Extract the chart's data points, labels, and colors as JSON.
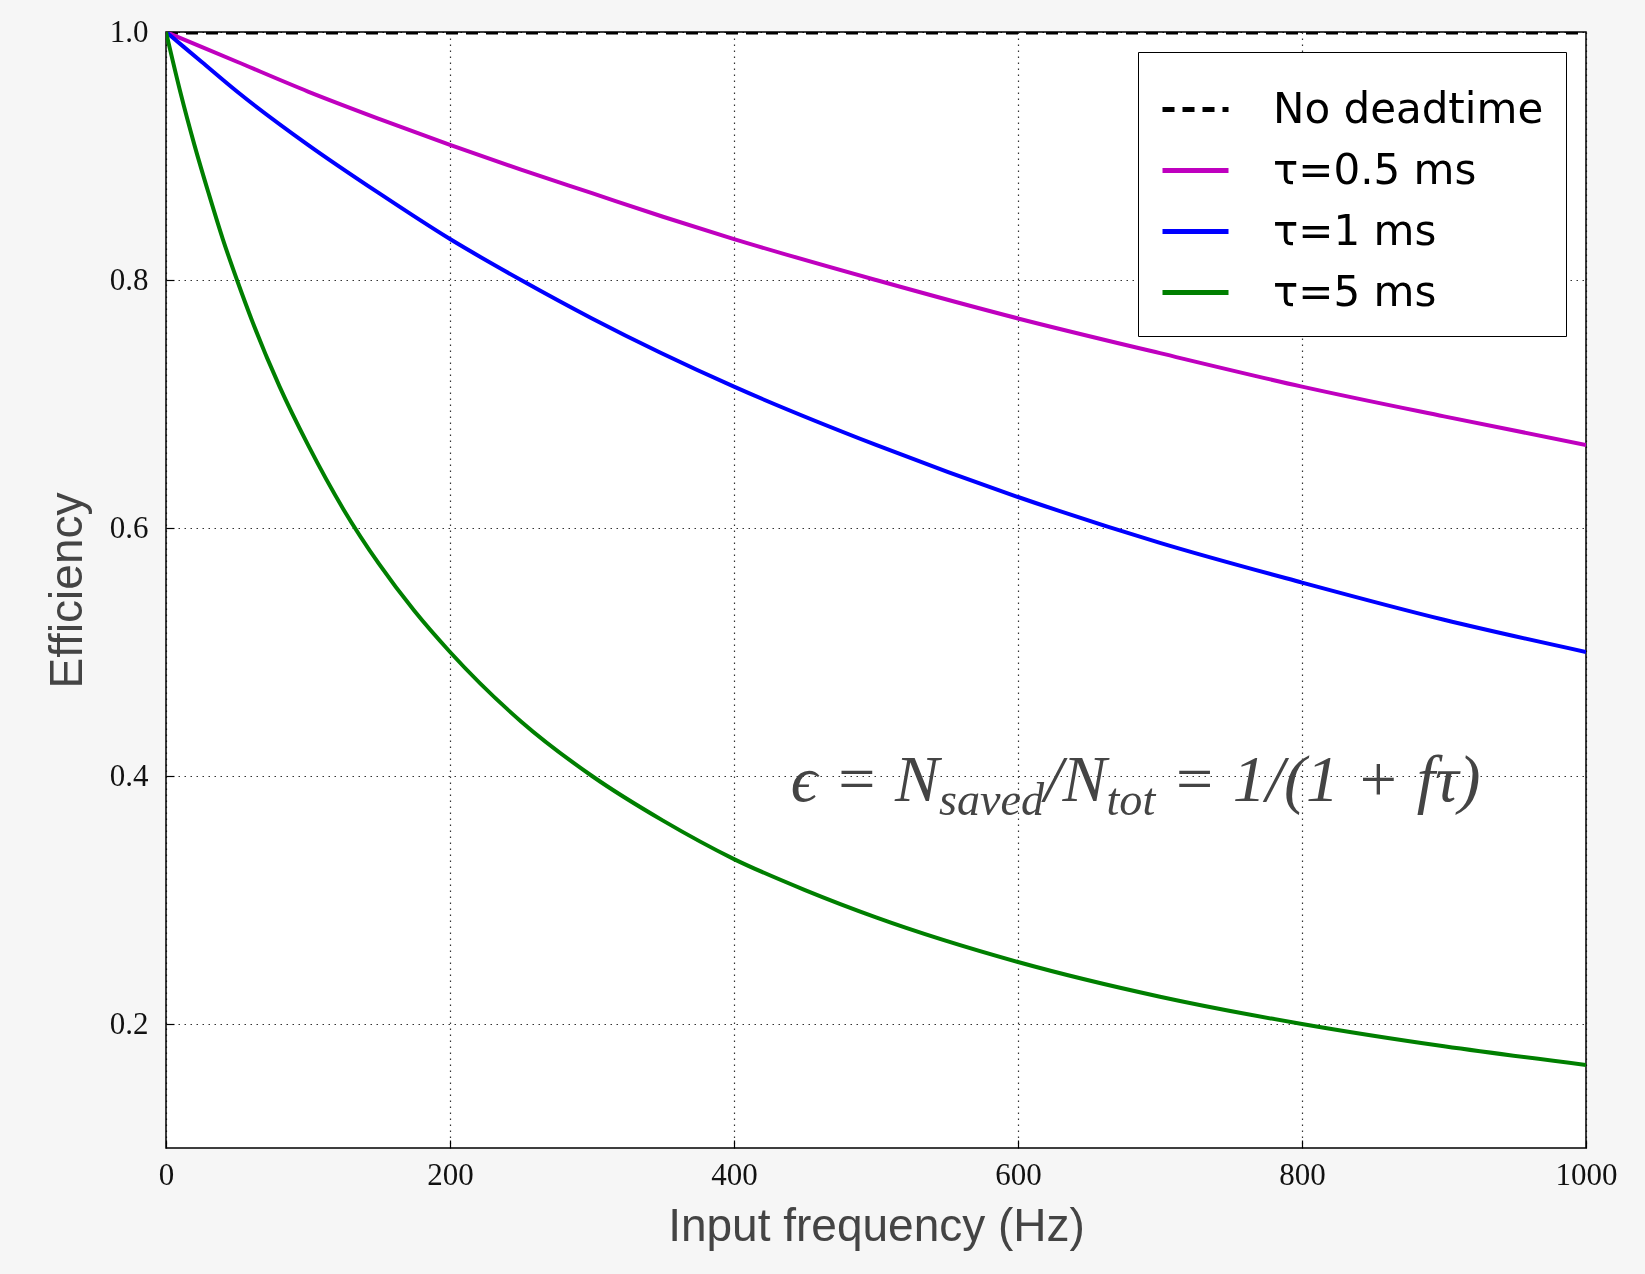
{
  "chart_data": {
    "type": "line",
    "xlabel": "Input frequency (Hz)",
    "ylabel": "Efficiency",
    "annotations": [
      "ϵ = N$_{saved}$/N$_{tot}$ = 1/(1 + fτ)"
    ],
    "xlim": [
      0,
      1000
    ],
    "ylim": [
      0.1,
      1.0
    ],
    "xticks": [
      0,
      200,
      400,
      600,
      800,
      1000
    ],
    "yticks": [
      0.2,
      0.4,
      0.6,
      0.8,
      {
        "value": 1,
        "label": "1.0"
      }
    ],
    "grid": true,
    "legend": "top right",
    "series": [
      {
        "name": "No deadtime",
        "color": "#000000",
        "line_style": "dashed",
        "x": [
          0,
          1000
        ],
        "values": [
          1,
          1
        ]
      },
      {
        "name": "τ=0.5 ms",
        "color": "#bf00bf",
        "x": [
          0,
          50,
          100,
          150,
          200,
          250,
          300,
          350,
          400,
          500,
          600,
          700,
          800,
          900,
          1000
        ],
        "values": [
          1,
          0.976,
          0.952,
          0.93,
          0.909,
          0.889,
          0.87,
          0.851,
          0.833,
          0.8,
          0.769,
          0.741,
          0.714,
          0.69,
          0.667
        ]
      },
      {
        "name": "τ=1 ms",
        "color": "#0000ff",
        "x": [
          0,
          25,
          50,
          100,
          150,
          200,
          250,
          300,
          400,
          500,
          600,
          700,
          800,
          900,
          1000
        ],
        "values": [
          1,
          0.976,
          0.952,
          0.909,
          0.87,
          0.833,
          0.8,
          0.769,
          0.714,
          0.667,
          0.625,
          0.588,
          0.556,
          0.526,
          0.5
        ]
      },
      {
        "name": "τ=5 ms",
        "color": "#007f00",
        "x": [
          0,
          10,
          20,
          30,
          40,
          50,
          60,
          80,
          100,
          125,
          150,
          175,
          200,
          250,
          300,
          350,
          400,
          450,
          500,
          600,
          700,
          800,
          900,
          1000
        ],
        "values": [
          1,
          0.952,
          0.909,
          0.87,
          0.833,
          0.8,
          0.769,
          0.714,
          0.667,
          0.615,
          0.571,
          0.533,
          0.5,
          0.444,
          0.4,
          0.364,
          0.333,
          0.308,
          0.286,
          0.25,
          0.222,
          0.2,
          0.182,
          0.167
        ]
      }
    ]
  }
}
